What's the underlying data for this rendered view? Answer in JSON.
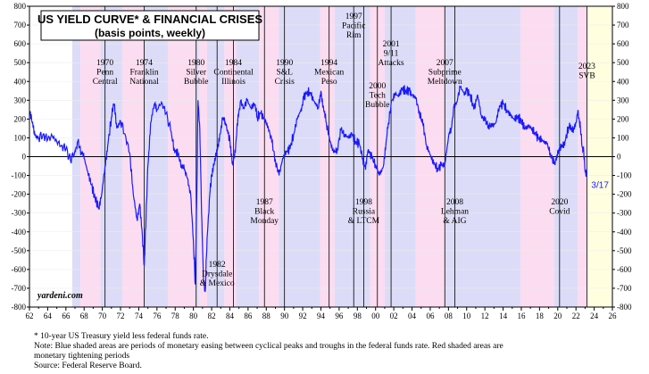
{
  "chart_data": {
    "type": "line",
    "title": "US YIELD CURVE* & FINANCIAL CRISES",
    "subtitle": "(basis points, weekly)",
    "watermark": "yardeni.com",
    "xlim": [
      1962,
      2026
    ],
    "ylim": [
      -800,
      800
    ],
    "x_ticks": [
      "62",
      "64",
      "66",
      "68",
      "70",
      "72",
      "74",
      "76",
      "78",
      "80",
      "82",
      "84",
      "86",
      "88",
      "90",
      "92",
      "94",
      "96",
      "98",
      "00",
      "02",
      "04",
      "06",
      "08",
      "10",
      "12",
      "14",
      "16",
      "18",
      "20",
      "22",
      "24",
      "26"
    ],
    "y_ticks": [
      "800",
      "700",
      "600",
      "500",
      "400",
      "300",
      "200",
      "100",
      "0",
      "-100",
      "-200",
      "-300",
      "-400",
      "-500",
      "-600",
      "-700",
      "-800"
    ],
    "last_label": "3/17",
    "series": [
      {
        "name": "10-year US Treasury yield less federal funds rate",
        "color": "#1a1aff",
        "points": [
          [
            1962.0,
            240
          ],
          [
            1962.3,
            180
          ],
          [
            1962.6,
            110
          ],
          [
            1963.0,
            100
          ],
          [
            1963.5,
            120
          ],
          [
            1964.0,
            90
          ],
          [
            1964.5,
            110
          ],
          [
            1965.0,
            80
          ],
          [
            1965.5,
            60
          ],
          [
            1966.0,
            40
          ],
          [
            1966.5,
            -20
          ],
          [
            1967.0,
            30
          ],
          [
            1967.3,
            80
          ],
          [
            1967.7,
            20
          ],
          [
            1968.0,
            -10
          ],
          [
            1968.4,
            -80
          ],
          [
            1968.8,
            -150
          ],
          [
            1969.2,
            -220
          ],
          [
            1969.6,
            -270
          ],
          [
            1969.9,
            -210
          ],
          [
            1970.3,
            -50
          ],
          [
            1970.6,
            60
          ],
          [
            1971.0,
            210
          ],
          [
            1971.3,
            280
          ],
          [
            1971.6,
            150
          ],
          [
            1972.0,
            190
          ],
          [
            1972.5,
            120
          ],
          [
            1973.0,
            20
          ],
          [
            1973.4,
            -200
          ],
          [
            1973.8,
            -330
          ],
          [
            1974.1,
            -250
          ],
          [
            1974.4,
            -420
          ],
          [
            1974.6,
            -580
          ],
          [
            1974.8,
            -320
          ],
          [
            1975.0,
            -50
          ],
          [
            1975.3,
            180
          ],
          [
            1975.7,
            280
          ],
          [
            1976.0,
            250
          ],
          [
            1976.5,
            290
          ],
          [
            1977.0,
            230
          ],
          [
            1977.5,
            140
          ],
          [
            1977.9,
            40
          ],
          [
            1978.3,
            10
          ],
          [
            1978.7,
            -50
          ],
          [
            1979.0,
            -70
          ],
          [
            1979.4,
            -120
          ],
          [
            1979.7,
            -200
          ],
          [
            1980.0,
            -450
          ],
          [
            1980.2,
            -680
          ],
          [
            1980.4,
            -130
          ],
          [
            1980.5,
            300
          ],
          [
            1980.7,
            150
          ],
          [
            1980.9,
            -300
          ],
          [
            1981.1,
            -650
          ],
          [
            1981.3,
            -720
          ],
          [
            1981.5,
            -430
          ],
          [
            1981.8,
            -200
          ],
          [
            1982.0,
            -100
          ],
          [
            1982.3,
            -40
          ],
          [
            1982.6,
            30
          ],
          [
            1982.9,
            120
          ],
          [
            1983.2,
            200
          ],
          [
            1983.5,
            180
          ],
          [
            1983.8,
            120
          ],
          [
            1984.0,
            90
          ],
          [
            1984.3,
            -40
          ],
          [
            1984.6,
            20
          ],
          [
            1984.9,
            220
          ],
          [
            1985.2,
            300
          ],
          [
            1985.5,
            260
          ],
          [
            1985.9,
            300
          ],
          [
            1986.3,
            260
          ],
          [
            1986.7,
            280
          ],
          [
            1987.0,
            210
          ],
          [
            1987.4,
            230
          ],
          [
            1987.8,
            200
          ],
          [
            1988.2,
            160
          ],
          [
            1988.6,
            80
          ],
          [
            1989.0,
            -20
          ],
          [
            1989.4,
            -100
          ],
          [
            1989.8,
            -10
          ],
          [
            1990.2,
            30
          ],
          [
            1990.6,
            40
          ],
          [
            1991.0,
            120
          ],
          [
            1991.4,
            200
          ],
          [
            1991.8,
            250
          ],
          [
            1992.1,
            310
          ],
          [
            1992.5,
            350
          ],
          [
            1992.9,
            330
          ],
          [
            1993.3,
            290
          ],
          [
            1993.7,
            260
          ],
          [
            1994.0,
            350
          ],
          [
            1994.3,
            250
          ],
          [
            1994.6,
            180
          ],
          [
            1995.0,
            80
          ],
          [
            1995.4,
            20
          ],
          [
            1995.8,
            40
          ],
          [
            1996.2,
            140
          ],
          [
            1996.6,
            120
          ],
          [
            1997.0,
            100
          ],
          [
            1997.4,
            120
          ],
          [
            1997.8,
            80
          ],
          [
            1998.2,
            70
          ],
          [
            1998.6,
            -10
          ],
          [
            1998.9,
            -70
          ],
          [
            1999.2,
            40
          ],
          [
            1999.6,
            -10
          ],
          [
            2000.0,
            -40
          ],
          [
            2000.4,
            -100
          ],
          [
            2000.8,
            -60
          ],
          [
            2001.1,
            40
          ],
          [
            2001.4,
            180
          ],
          [
            2001.8,
            300
          ],
          [
            2002.1,
            340
          ],
          [
            2002.5,
            320
          ],
          [
            2002.9,
            360
          ],
          [
            2003.3,
            350
          ],
          [
            2003.7,
            350
          ],
          [
            2004.0,
            330
          ],
          [
            2004.4,
            310
          ],
          [
            2004.8,
            240
          ],
          [
            2005.2,
            170
          ],
          [
            2005.6,
            60
          ],
          [
            2006.0,
            10
          ],
          [
            2006.4,
            -40
          ],
          [
            2006.8,
            -60
          ],
          [
            2007.2,
            -50
          ],
          [
            2007.6,
            -40
          ],
          [
            2008.0,
            100
          ],
          [
            2008.3,
            150
          ],
          [
            2008.6,
            270
          ],
          [
            2008.9,
            290
          ],
          [
            2009.3,
            370
          ],
          [
            2009.7,
            340
          ],
          [
            2010.0,
            350
          ],
          [
            2010.4,
            330
          ],
          [
            2010.8,
            250
          ],
          [
            2011.2,
            330
          ],
          [
            2011.6,
            220
          ],
          [
            2012.0,
            190
          ],
          [
            2012.4,
            170
          ],
          [
            2012.8,
            160
          ],
          [
            2013.2,
            180
          ],
          [
            2013.6,
            270
          ],
          [
            2014.0,
            280
          ],
          [
            2014.4,
            250
          ],
          [
            2014.8,
            220
          ],
          [
            2015.2,
            200
          ],
          [
            2015.6,
            210
          ],
          [
            2016.0,
            190
          ],
          [
            2016.4,
            150
          ],
          [
            2016.8,
            160
          ],
          [
            2017.2,
            150
          ],
          [
            2017.6,
            110
          ],
          [
            2018.0,
            100
          ],
          [
            2018.4,
            80
          ],
          [
            2018.8,
            70
          ],
          [
            2019.2,
            20
          ],
          [
            2019.6,
            -40
          ],
          [
            2019.9,
            10
          ],
          [
            2020.2,
            30
          ],
          [
            2020.5,
            60
          ],
          [
            2020.8,
            80
          ],
          [
            2021.2,
            160
          ],
          [
            2021.5,
            140
          ],
          [
            2021.8,
            150
          ],
          [
            2022.0,
            180
          ],
          [
            2022.2,
            240
          ],
          [
            2022.35,
            200
          ],
          [
            2022.5,
            150
          ],
          [
            2022.7,
            50
          ],
          [
            2022.85,
            30
          ],
          [
            2023.0,
            -80
          ],
          [
            2023.1,
            -100
          ],
          [
            2023.2,
            -90
          ]
        ]
      }
    ],
    "shaded_regions": [
      {
        "type": "easing",
        "from": 1966.7,
        "to": 1967.6
      },
      {
        "type": "tightening",
        "from": 1967.6,
        "to": 1969.8
      },
      {
        "type": "easing",
        "from": 1969.8,
        "to": 1972.2
      },
      {
        "type": "tightening",
        "from": 1972.2,
        "to": 1974.6
      },
      {
        "type": "easing",
        "from": 1974.6,
        "to": 1977.2
      },
      {
        "type": "tightening",
        "from": 1977.2,
        "to": 1980.3
      },
      {
        "type": "easing",
        "from": 1980.3,
        "to": 1980.6
      },
      {
        "type": "tightening",
        "from": 1980.6,
        "to": 1981.5
      },
      {
        "type": "easing",
        "from": 1981.5,
        "to": 1983.4
      },
      {
        "type": "tightening",
        "from": 1983.4,
        "to": 1984.7
      },
      {
        "type": "easing",
        "from": 1984.7,
        "to": 1987.2
      },
      {
        "type": "tightening",
        "from": 1987.2,
        "to": 1989.4
      },
      {
        "type": "easing",
        "from": 1989.4,
        "to": 1993.9
      },
      {
        "type": "tightening",
        "from": 1993.9,
        "to": 1995.5
      },
      {
        "type": "easing",
        "from": 1995.5,
        "to": 1999.4
      },
      {
        "type": "tightening",
        "from": 1999.4,
        "to": 2001.0
      },
      {
        "type": "easing",
        "from": 2001.0,
        "to": 2004.4
      },
      {
        "type": "tightening",
        "from": 2004.4,
        "to": 2007.6
      },
      {
        "type": "easing",
        "from": 2007.6,
        "to": 2015.9
      },
      {
        "type": "tightening",
        "from": 2015.9,
        "to": 2019.6
      },
      {
        "type": "easing",
        "from": 2019.6,
        "to": 2022.2
      },
      {
        "type": "tightening",
        "from": 2022.2,
        "to": 2023.2
      },
      {
        "type": "current",
        "from": 2023.2,
        "to": 2026.0
      }
    ],
    "events": [
      {
        "year": 1970.3,
        "lines": [
          "1970",
          "Penn",
          "Central"
        ],
        "pos": "upper"
      },
      {
        "year": 1974.6,
        "lines": [
          "1974",
          "Franklin",
          "National"
        ],
        "pos": "upper"
      },
      {
        "year": 1980.3,
        "lines": [
          "1980",
          "Silver",
          "Bubble"
        ],
        "pos": "upper"
      },
      {
        "year": 1984.4,
        "lines": [
          "1984",
          "Continental",
          "Illinois"
        ],
        "pos": "upper"
      },
      {
        "year": 1990.0,
        "lines": [
          "1990",
          "S&L",
          "Crisis"
        ],
        "pos": "upper"
      },
      {
        "year": 1994.9,
        "lines": [
          "1994",
          "Mexican",
          "Peso"
        ],
        "pos": "upper"
      },
      {
        "year": 1997.6,
        "lines": [
          "1997",
          "Pacific",
          "Rim"
        ],
        "pos": "top"
      },
      {
        "year": 2001.7,
        "lines": [
          "2001",
          "9/11",
          "Attacks"
        ],
        "pos": "upper2"
      },
      {
        "year": 2000.2,
        "lines": [
          "2000",
          "Tech",
          "Bubble"
        ],
        "pos": "mid"
      },
      {
        "year": 2007.6,
        "lines": [
          "2007",
          "Subprime",
          "Meltdown"
        ],
        "pos": "upper"
      },
      {
        "year": 2023.2,
        "lines": [
          "2023",
          "SVB"
        ],
        "pos": "upper3"
      },
      {
        "year": 1982.6,
        "lines": [
          "1982",
          "Drysdale",
          "& Mexico"
        ],
        "pos": "bottom"
      },
      {
        "year": 1987.8,
        "lines": [
          "1987",
          "Black",
          "Monday"
        ],
        "pos": "lower"
      },
      {
        "year": 1998.7,
        "lines": [
          "1998",
          "Russia",
          "& LTCM"
        ],
        "pos": "lower"
      },
      {
        "year": 2008.7,
        "lines": [
          "2008",
          "Lehman",
          "& AIG"
        ],
        "pos": "lower"
      },
      {
        "year": 2020.2,
        "lines": [
          "2020",
          "Covid"
        ],
        "pos": "lower"
      }
    ],
    "colors": {
      "line": "#1a1aff",
      "easing": "#dcdcf8",
      "tightening": "#fcdcf0",
      "current": "#ffffe0",
      "zero": "#000000",
      "grid": "#ececec"
    }
  },
  "notes": [
    "*  10-year US Treasury yield less federal funds rate.",
    "Note: Blue shaded areas are periods of monetary easing between cyclical peaks and troughs in the federal funds rate. Red shaded areas are",
    "monetary tightening periods",
    "Source: Federal Reserve Board."
  ]
}
